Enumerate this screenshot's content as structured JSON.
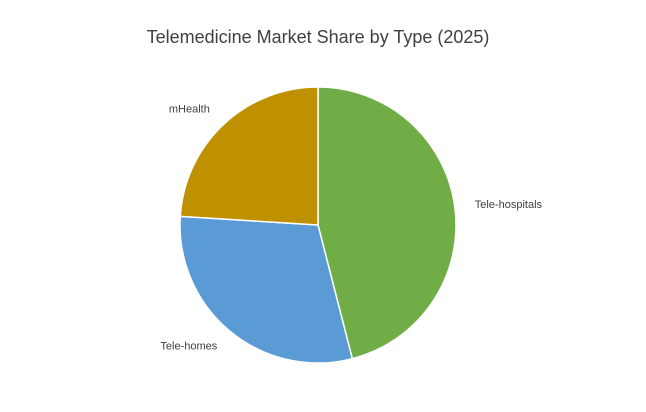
{
  "chart_data": {
    "type": "pie",
    "title": "Telemedicine  Market Share by Type (2025)",
    "categories": [
      "Tele-hospitals",
      "Tele-homes",
      "mHealth"
    ],
    "values": [
      46,
      30,
      24
    ],
    "colors": [
      "#70ad47",
      "#5b9bd5",
      "#bf9000"
    ]
  }
}
